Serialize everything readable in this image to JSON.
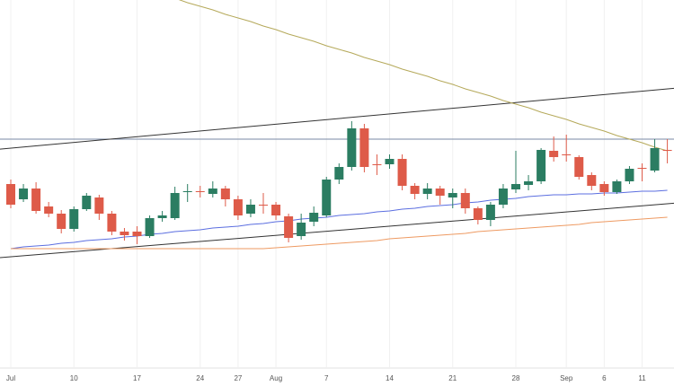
{
  "chart_data": {
    "type": "candlestick",
    "categories": [
      "Jul",
      null,
      null,
      null,
      null,
      "10",
      null,
      null,
      null,
      null,
      "17",
      null,
      null,
      null,
      null,
      "24",
      null,
      null,
      "27",
      null,
      null,
      "Aug",
      null,
      null,
      null,
      "7",
      null,
      null,
      null,
      null,
      "14",
      null,
      null,
      null,
      null,
      "21",
      null,
      null,
      null,
      null,
      "28",
      null,
      null,
      null,
      "Sep",
      null,
      null,
      "6",
      null,
      null,
      "11",
      null,
      null
    ],
    "open": [
      205,
      188,
      200,
      180,
      172,
      155,
      177,
      190,
      172,
      152,
      152,
      147,
      167,
      167,
      196,
      197,
      194,
      200,
      188,
      172,
      182,
      182,
      169,
      147,
      163,
      170,
      210,
      224,
      267,
      227,
      227,
      233,
      203,
      194,
      200,
      190,
      195,
      178,
      165,
      182,
      199,
      204,
      208,
      242,
      238,
      235,
      215,
      205,
      196,
      208,
      223,
      220,
      243
    ],
    "high": [
      210,
      205,
      207,
      185,
      176,
      180,
      195,
      193,
      175,
      156,
      158,
      170,
      175,
      202,
      205,
      203,
      208,
      203,
      192,
      188,
      195,
      185,
      172,
      172,
      180,
      213,
      228,
      275,
      272,
      238,
      238,
      238,
      206,
      206,
      203,
      200,
      200,
      180,
      185,
      205,
      242,
      215,
      245,
      258,
      260,
      237,
      218,
      208,
      210,
      225,
      228,
      255,
      255
    ],
    "low": [
      178,
      185,
      172,
      168,
      150,
      152,
      175,
      165,
      148,
      142,
      138,
      145,
      163,
      165,
      185,
      190,
      190,
      180,
      165,
      168,
      172,
      165,
      140,
      143,
      158,
      168,
      205,
      220,
      218,
      215,
      222,
      198,
      188,
      188,
      182,
      178,
      172,
      160,
      158,
      178,
      195,
      198,
      205,
      230,
      230,
      210,
      198,
      192,
      194,
      205,
      208,
      218,
      228
    ],
    "close": [
      182,
      200,
      175,
      172,
      155,
      177,
      192,
      172,
      152,
      148,
      147,
      167,
      170,
      195,
      197,
      196,
      200,
      188,
      170,
      182,
      181,
      170,
      145,
      162,
      173,
      210,
      224,
      267,
      224,
      226,
      233,
      203,
      194,
      200,
      192,
      195,
      178,
      165,
      182,
      200,
      205,
      208,
      243,
      235,
      237,
      213,
      203,
      196,
      208,
      222,
      222,
      245,
      242
    ],
    "up_color": "#2b7d62",
    "down_color": "#de5b49",
    "ylim": [
      0,
      410
    ],
    "lines": [
      {
        "color": "#b5a95a",
        "values": [
          null,
          null,
          null,
          null,
          null,
          null,
          null,
          null,
          null,
          null,
          null,
          null,
          null,
          412,
          407,
          403,
          399,
          394,
          390,
          386,
          381,
          377,
          372,
          368,
          364,
          359,
          355,
          351,
          346,
          342,
          338,
          333,
          329,
          325,
          320,
          316,
          311,
          307,
          303,
          298,
          294,
          290,
          285,
          281,
          277,
          272,
          268,
          264,
          259,
          255,
          251,
          246,
          242
        ]
      },
      {
        "color": "#5b6ee0",
        "values": [
          133,
          135,
          136,
          137,
          139,
          140,
          142,
          143,
          144,
          146,
          147,
          149,
          150,
          152,
          153,
          154,
          156,
          157,
          158,
          160,
          161,
          163,
          164,
          166,
          167,
          168,
          170,
          171,
          172,
          174,
          175,
          177,
          178,
          180,
          181,
          182,
          184,
          185,
          187,
          188,
          189,
          191,
          192,
          193,
          193,
          194,
          194,
          195,
          195,
          196,
          197,
          197,
          198
        ]
      },
      {
        "color": "#ee9a62",
        "values": [
          133,
          133,
          133,
          133,
          133,
          133,
          133,
          133,
          133,
          133,
          133,
          133,
          133,
          133,
          133,
          133,
          133,
          133,
          133,
          133,
          133,
          134,
          135,
          136,
          137,
          138,
          139,
          140,
          141,
          142,
          144,
          145,
          146,
          147,
          148,
          149,
          150,
          152,
          153,
          154,
          155,
          156,
          157,
          158,
          159,
          160,
          162,
          163,
          164,
          165,
          166,
          167,
          168
        ]
      }
    ],
    "trendlines": [
      {
        "color": "#333333",
        "values": [
          245,
          311
        ]
      },
      {
        "color": "#333333",
        "values": [
          124,
          183
        ]
      }
    ],
    "hlines": [
      {
        "color": "#7a8aa6",
        "value": 255
      }
    ],
    "grid": true
  }
}
